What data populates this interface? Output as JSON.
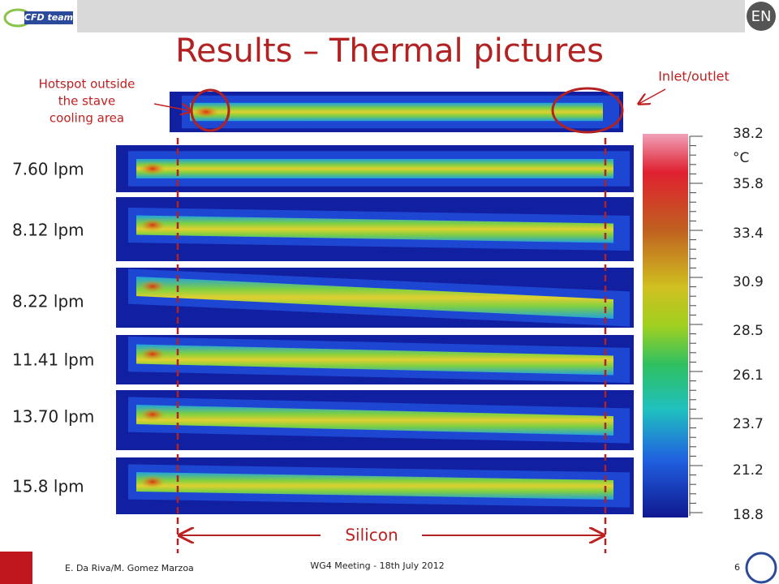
{
  "header": {
    "logo": "CFD team",
    "badge": "EN",
    "title": "Results – Thermal pictures"
  },
  "annotations": {
    "hotspot": [
      "Hotspot outside",
      "the stave",
      "cooling area"
    ],
    "inlet": "Inlet/outlet",
    "silicon": "Silicon"
  },
  "flows": [
    "7.60 lpm",
    "8.12 lpm",
    "8.22 lpm",
    "11.41 lpm",
    "13.70 lpm",
    "15.8 lpm"
  ],
  "colorbar": {
    "unit": "°C",
    "labels": [
      38.2,
      35.8,
      33.4,
      30.9,
      28.5,
      26.1,
      23.7,
      21.2,
      18.8
    ]
  },
  "footer": {
    "authors": "E. Da Riva/M. Gomez Marzoa",
    "meeting": "WG4 Meeting - 18th July 2012",
    "page": 6
  }
}
